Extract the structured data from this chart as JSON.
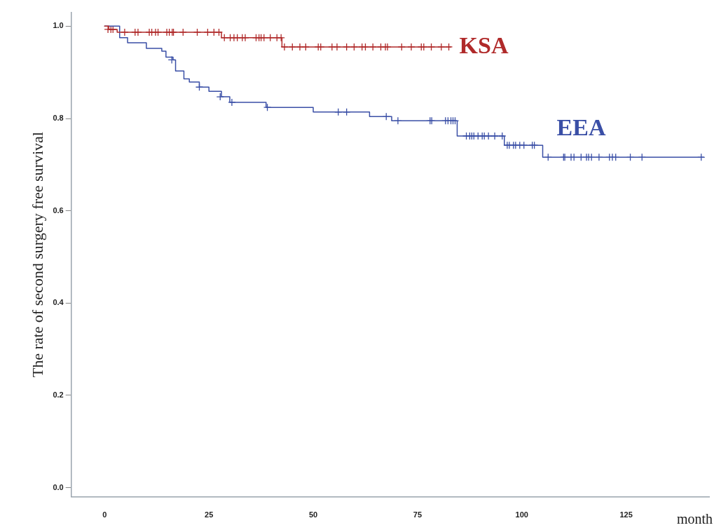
{
  "chart_data": {
    "type": "step",
    "ylabel": "The rate of second surgery free survival",
    "xlabel": "month",
    "xlim": [
      -8,
      145
    ],
    "xticks": [
      0,
      25,
      50,
      75,
      100,
      125
    ],
    "ylim": [
      -0.02,
      1.03
    ],
    "yticks": [
      {
        "value": 0,
        "label": "0.0"
      },
      0.2,
      0.4,
      0.6,
      0.8,
      {
        "value": 1,
        "label": "1.0"
      }
    ],
    "grid": false,
    "legend": false,
    "line_style": "solid",
    "series": [
      {
        "name": "KSA",
        "color": "#b02a2a",
        "x": [
          0,
          1,
          3,
          28,
          42.5,
          83
        ],
        "values": [
          1,
          0.993,
          0.987,
          0.975,
          0.955,
          0.955
        ]
      },
      {
        "name": "EEA",
        "color": "#3a4fa6",
        "x": [
          0,
          3.6,
          5.5,
          10,
          13.7,
          14.7,
          16.4,
          17,
          19,
          20.3,
          22.7,
          25,
          28,
          30,
          38.7,
          50,
          63.5,
          68.8,
          84.5,
          95.8,
          105,
          143.6
        ],
        "values": [
          1,
          0.975,
          0.964,
          0.952,
          0.946,
          0.933,
          0.927,
          0.903,
          0.886,
          0.879,
          0.868,
          0.859,
          0.847,
          0.835,
          0.824,
          0.814,
          0.804,
          0.795,
          0.762,
          0.742,
          0.716,
          0.716
        ]
      },
      {
        "type": "scatter",
        "marker": "cross",
        "color": "#b02a2a",
        "x": [
          0.8,
          1.5,
          2,
          4.8,
          7.3,
          8,
          10.7,
          11.3,
          12.2,
          12.8,
          14.9,
          15.5,
          16.2,
          16.5,
          18.8,
          22.2,
          24.7,
          26.2,
          27.4,
          28.7,
          30.1,
          31,
          31.8,
          33,
          33.7,
          36.3,
          37,
          37.5,
          38.2,
          39.7,
          41.3,
          42.3,
          43.1,
          45,
          46.8,
          48.2,
          51.2,
          51.8,
          54.5,
          55.7,
          58,
          59.8,
          61.7,
          62.5,
          64.3,
          66.2,
          67.3,
          67.8,
          71.2,
          73.5,
          75.9,
          76.5,
          78.3,
          80.7,
          82.5
        ],
        "values": [
          0.993,
          0.993,
          0.993,
          0.987,
          0.987,
          0.987,
          0.987,
          0.987,
          0.987,
          0.987,
          0.987,
          0.987,
          0.987,
          0.987,
          0.987,
          0.987,
          0.987,
          0.987,
          0.987,
          0.975,
          0.975,
          0.975,
          0.975,
          0.975,
          0.975,
          0.975,
          0.975,
          0.975,
          0.975,
          0.975,
          0.975,
          0.975,
          0.955,
          0.955,
          0.955,
          0.955,
          0.955,
          0.955,
          0.955,
          0.955,
          0.955,
          0.955,
          0.955,
          0.955,
          0.955,
          0.955,
          0.955,
          0.955,
          0.955,
          0.955,
          0.955,
          0.955,
          0.955,
          0.955,
          0.955
        ]
      },
      {
        "type": "scatter",
        "marker": "cross",
        "color": "#3a4fa6",
        "x": [
          16.1,
          22.7,
          27.7,
          30.5,
          39,
          56,
          58,
          67.5,
          70.3,
          78,
          78.4,
          81.7,
          82.3,
          83,
          83.5,
          84,
          86.7,
          87.5,
          88,
          88.5,
          89.5,
          90.5,
          91,
          92,
          93.5,
          95.3,
          96.5,
          97,
          98,
          98.5,
          99.5,
          100.5,
          102.5,
          103,
          106.3,
          110,
          110.3,
          111.8,
          112.5,
          114.2,
          115.5,
          116,
          116.7,
          118.5,
          121,
          121.7,
          122.5,
          126,
          128.8,
          143
        ],
        "values": [
          0.927,
          0.868,
          0.847,
          0.835,
          0.824,
          0.814,
          0.814,
          0.804,
          0.795,
          0.795,
          0.795,
          0.795,
          0.795,
          0.795,
          0.795,
          0.795,
          0.762,
          0.762,
          0.762,
          0.762,
          0.762,
          0.762,
          0.762,
          0.762,
          0.762,
          0.762,
          0.742,
          0.742,
          0.742,
          0.742,
          0.742,
          0.742,
          0.742,
          0.742,
          0.716,
          0.716,
          0.716,
          0.716,
          0.716,
          0.716,
          0.716,
          0.716,
          0.716,
          0.716,
          0.716,
          0.716,
          0.716,
          0.716,
          0.716,
          0.716
        ]
      }
    ]
  }
}
